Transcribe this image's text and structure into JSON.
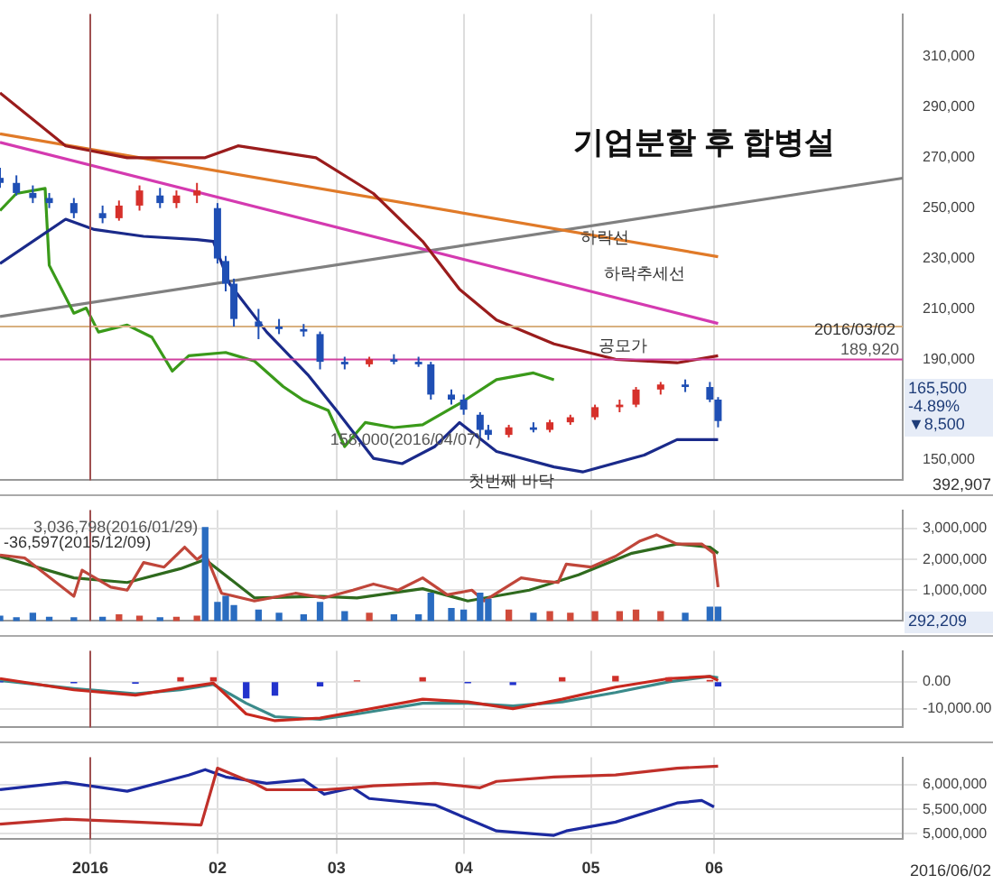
{
  "chart_data": [
    {
      "type": "candlestick",
      "title": "기업분할 후 합병설",
      "xlim": [
        "2015-12-10",
        "2016-07-17"
      ],
      "xticks": [
        {
          "value": "2016-01-01",
          "label": null
        },
        {
          "value": "2016-02-01",
          "label": null
        },
        {
          "value": "2016-03-01",
          "label": null
        },
        {
          "value": "2016-04-01",
          "label": null
        },
        {
          "value": "2016-05-02",
          "label": null
        },
        {
          "value": "2016-06-01",
          "label": null
        }
      ],
      "ylim": [
        142000,
        327000
      ],
      "yticks": [
        {
          "value": 150000,
          "label": "150,000"
        },
        {
          "value": 190000,
          "label": "190,000"
        },
        {
          "value": 210000,
          "label": "210,000"
        },
        {
          "value": 230000,
          "label": "230,000"
        },
        {
          "value": 250000,
          "label": "250,000"
        },
        {
          "value": 270000,
          "label": "270,000"
        },
        {
          "value": 290000,
          "label": "290,000"
        },
        {
          "value": 310000,
          "label": "310,000"
        }
      ],
      "grid": "x",
      "tick_labels": "y",
      "series": [
        {
          "type": "line",
          "color": "#1a2a8a",
          "x": [
            "2015-12-10",
            "2015-12-26",
            "2016-01-02",
            "2016-01-14",
            "2016-01-27",
            "2016-01-31",
            "2016-02-04",
            "2016-02-13",
            "2016-02-23",
            "2016-03-01",
            "2016-03-10",
            "2016-03-17",
            "2016-03-25",
            "2016-03-31",
            "2016-04-09",
            "2016-04-23",
            "2016-04-30",
            "2016-05-15",
            "2016-05-23",
            "2016-06-02"
          ],
          "values": [
            228000,
            245600,
            241500,
            238800,
            237500,
            236800,
            219800,
            200800,
            183900,
            169700,
            150700,
            148600,
            155400,
            164900,
            153400,
            147300,
            145300,
            152000,
            158100,
            158100
          ]
        },
        {
          "type": "line",
          "color": "#9a1c1c",
          "x": [
            "2015-12-10",
            "2015-12-26",
            "2016-01-10",
            "2016-01-29",
            "2016-02-06",
            "2016-02-25",
            "2016-03-10",
            "2016-03-22",
            "2016-03-31",
            "2016-04-09",
            "2016-04-23",
            "2016-05-08",
            "2016-05-23",
            "2016-06-02"
          ],
          "values": [
            295700,
            274700,
            270000,
            270000,
            274700,
            270000,
            255800,
            236800,
            217800,
            205600,
            196100,
            190000,
            188600,
            191400
          ]
        },
        {
          "type": "line",
          "color": "#3a9a1a",
          "x": [
            "2015-12-10",
            "2015-12-14",
            "2015-12-21",
            "2015-12-22",
            "2015-12-28",
            "2015-12-31",
            "2016-01-03",
            "2016-01-10",
            "2016-01-16",
            "2016-01-21",
            "2016-01-25",
            "2016-02-03",
            "2016-02-10",
            "2016-02-17",
            "2016-02-22",
            "2016-02-28",
            "2016-03-03",
            "2016-03-08",
            "2016-03-15",
            "2016-03-22",
            "2016-03-31",
            "2016-04-09",
            "2016-04-18",
            "2016-04-23"
          ],
          "values": [
            249000,
            255800,
            257800,
            227300,
            208300,
            210300,
            200800,
            203600,
            198800,
            185300,
            191400,
            192700,
            189300,
            179200,
            173700,
            169700,
            155400,
            164900,
            162900,
            164000,
            172400,
            181900,
            184600,
            181900
          ]
        },
        {
          "type": "line",
          "color": "#e07a28",
          "x": [
            "2015-12-10",
            "2016-06-02"
          ],
          "values": [
            279500,
            230700
          ]
        },
        {
          "type": "line",
          "color": "#d43ab0",
          "x": [
            "2015-12-10",
            "2016-06-02"
          ],
          "values": [
            276100,
            204200
          ]
        },
        {
          "type": "line",
          "color": "#808080",
          "x": [
            "2015-12-10",
            "2016-07-17"
          ],
          "values": [
            207000,
            261900
          ]
        },
        {
          "x": [
            "2015-12-10",
            "2015-12-14",
            "2015-12-18",
            "2015-12-22",
            "2015-12-28",
            "2016-01-04",
            "2016-01-08",
            "2016-01-13",
            "2016-01-18",
            "2016-01-22",
            "2016-01-27",
            "2016-02-01",
            "2016-02-03",
            "2016-02-05",
            "2016-02-11",
            "2016-02-16",
            "2016-02-22",
            "2016-02-26",
            "2016-03-03",
            "2016-03-09",
            "2016-03-15",
            "2016-03-21",
            "2016-03-24",
            "2016-03-29",
            "2016-04-01",
            "2016-04-05",
            "2016-04-07",
            "2016-04-12",
            "2016-04-18",
            "2016-04-22",
            "2016-04-27",
            "2016-05-03",
            "2016-05-09",
            "2016-05-13",
            "2016-05-19",
            "2016-05-25",
            "2016-05-31",
            "2016-06-02"
          ],
          "ohlc": [
            [
              262000,
              266000,
              258000,
              260000
            ],
            [
              260000,
              263000,
              255000,
              256000
            ],
            [
              256000,
              259000,
              252000,
              254000
            ],
            [
              254000,
              256000,
              250000,
              252000
            ],
            [
              252000,
              254000,
              246000,
              248000
            ],
            [
              248000,
              251000,
              244000,
              246000
            ],
            [
              246000,
              253000,
              245000,
              251000
            ],
            [
              251000,
              259000,
              249000,
              257000
            ],
            [
              255000,
              258000,
              250000,
              252000
            ],
            [
              252000,
              257000,
              250000,
              255000
            ],
            [
              255000,
              260000,
              252000,
              257000
            ],
            [
              250000,
              252000,
              228000,
              230000
            ],
            [
              229000,
              231000,
              217000,
              220000
            ],
            [
              220000,
              222000,
              203000,
              206000
            ],
            [
              205000,
              210000,
              198000,
              203000
            ],
            [
              203000,
              206000,
              200000,
              202000
            ],
            [
              202000,
              204000,
              199000,
              201000
            ],
            [
              200000,
              201000,
              186000,
              189000
            ],
            [
              189000,
              191000,
              186000,
              188000
            ],
            [
              188000,
              191000,
              187000,
              190000
            ],
            [
              190000,
              192000,
              188000,
              189000
            ],
            [
              189000,
              191000,
              187000,
              188000
            ],
            [
              188000,
              189000,
              174000,
              176000
            ],
            [
              176000,
              178000,
              172000,
              174000
            ],
            [
              174000,
              176000,
              168000,
              170000
            ],
            [
              168000,
              169000,
              159000,
              162000
            ],
            [
              162000,
              164000,
              158000,
              160000
            ],
            [
              160000,
              164000,
              159000,
              163000
            ],
            [
              163000,
              165000,
              161000,
              162000
            ],
            [
              162000,
              166000,
              161000,
              165000
            ],
            [
              165000,
              168000,
              164000,
              167000
            ],
            [
              167000,
              172000,
              166000,
              171000
            ],
            [
              171000,
              174000,
              169000,
              172000
            ],
            [
              172000,
              179000,
              171000,
              178000
            ],
            [
              178000,
              181000,
              176000,
              180000
            ],
            [
              180000,
              182000,
              177000,
              179000
            ],
            [
              179000,
              181000,
              173000,
              174000
            ],
            [
              174000,
              175000,
              163000,
              165500
            ]
          ],
          "colors": [
            "#1f4fb4",
            "#1f4fb4",
            "#1f4fb4",
            "#1f4fb4",
            "#1f4fb4",
            "#1f4fb4",
            "#d6302a",
            "#d6302a",
            "#1f4fb4",
            "#d6302a",
            "#d6302a",
            "#1f4fb4",
            "#1f4fb4",
            "#1f4fb4",
            "#1f4fb4",
            "#1f4fb4",
            "#1f4fb4",
            "#1f4fb4",
            "#1f4fb4",
            "#d6302a",
            "#1f4fb4",
            "#1f4fb4",
            "#1f4fb4",
            "#1f4fb4",
            "#1f4fb4",
            "#1f4fb4",
            "#1f4fb4",
            "#d6302a",
            "#1f4fb4",
            "#d6302a",
            "#d6302a",
            "#d6302a",
            "#d6302a",
            "#d6302a",
            "#d6302a",
            "#1f4fb4",
            "#1f4fb4",
            "#1f4fb4"
          ]
        }
      ],
      "ref_lines": [
        {
          "axis": "y",
          "value": 189920,
          "label": "189,920",
          "color": "#d040a0"
        },
        {
          "axis": "y",
          "value": 203000,
          "color": "#d8b080"
        },
        {
          "axis": "x",
          "value": "2016-01-01",
          "color": "#a05050"
        }
      ],
      "annotations": [
        "하락선",
        "하락추세선",
        "공모가",
        "첫번째 바닥",
        "2016/03/02",
        "165,500 -4.89% ▼8,500",
        "392,907",
        {
          "text": "158,000(2016/04/07)",
          "x": "2016-04-07",
          "y": 158000
        }
      ]
    },
    {
      "type": "bar",
      "xlim": [
        "2015-12-10",
        "2016-07-17"
      ],
      "xticks": [
        {
          "value": "2016-01-01",
          "label": null
        },
        {
          "value": "2016-02-01",
          "label": null
        },
        {
          "value": "2016-03-01",
          "label": null
        },
        {
          "value": "2016-04-01",
          "label": null
        },
        {
          "value": "2016-05-02",
          "label": null
        },
        {
          "value": "2016-06-01",
          "label": null
        }
      ],
      "ylim": [
        0,
        3600000
      ],
      "yticks": [
        {
          "value": 1000000,
          "label": "1,000,000"
        },
        {
          "value": 2000000,
          "label": "2,000,000"
        },
        {
          "value": 3000000,
          "label": "3,000,000"
        }
      ],
      "grid": true,
      "tick_labels": "y",
      "series": [
        {
          "x": [
            "2015-12-10",
            "2015-12-14",
            "2015-12-18",
            "2015-12-22",
            "2015-12-28",
            "2016-01-04",
            "2016-01-08",
            "2016-01-13",
            "2016-01-18",
            "2016-01-22",
            "2016-01-27",
            "2016-01-29",
            "2016-02-01",
            "2016-02-03",
            "2016-02-05",
            "2016-02-11",
            "2016-02-16",
            "2016-02-22",
            "2016-02-26",
            "2016-03-03",
            "2016-03-09",
            "2016-03-15",
            "2016-03-21",
            "2016-03-24",
            "2016-03-29",
            "2016-04-01",
            "2016-04-05",
            "2016-04-07",
            "2016-04-12",
            "2016-04-18",
            "2016-04-22",
            "2016-04-27",
            "2016-05-03",
            "2016-05-09",
            "2016-05-13",
            "2016-05-19",
            "2016-05-25",
            "2016-05-31",
            "2016-06-02"
          ],
          "values": [
            150000,
            100000,
            250000,
            120000,
            100000,
            120000,
            200000,
            150000,
            100000,
            120000,
            150000,
            3036798,
            600000,
            800000,
            500000,
            350000,
            250000,
            200000,
            600000,
            300000,
            250000,
            200000,
            200000,
            900000,
            400000,
            350000,
            900000,
            700000,
            350000,
            250000,
            300000,
            250000,
            300000,
            300000,
            350000,
            300000,
            250000,
            450000,
            450000
          ],
          "colors": [
            "#2a6cc0",
            "#2a6cc0",
            "#2a6cc0",
            "#2a6cc0",
            "#2a6cc0",
            "#2a6cc0",
            "#d04a3a",
            "#d04a3a",
            "#2a6cc0",
            "#d04a3a",
            "#d04a3a",
            "#2a6cc0",
            "#2a6cc0",
            "#2a6cc0",
            "#2a6cc0",
            "#2a6cc0",
            "#2a6cc0",
            "#2a6cc0",
            "#2a6cc0",
            "#2a6cc0",
            "#d04a3a",
            "#2a6cc0",
            "#2a6cc0",
            "#2a6cc0",
            "#2a6cc0",
            "#2a6cc0",
            "#2a6cc0",
            "#2a6cc0",
            "#d04a3a",
            "#2a6cc0",
            "#d04a3a",
            "#d04a3a",
            "#d04a3a",
            "#d04a3a",
            "#d04a3a",
            "#d04a3a",
            "#2a6cc0",
            "#2a6cc0",
            "#2a6cc0"
          ]
        },
        {
          "type": "line",
          "color": "#c0463a",
          "x": [
            "2015-12-10",
            "2015-12-16",
            "2015-12-28",
            "2015-12-30",
            "2016-01-06",
            "2016-01-10",
            "2016-01-14",
            "2016-01-19",
            "2016-01-24",
            "2016-01-27",
            "2016-01-29",
            "2016-02-02",
            "2016-02-10",
            "2016-02-20",
            "2016-02-27",
            "2016-03-05",
            "2016-03-10",
            "2016-03-16",
            "2016-03-22",
            "2016-03-28",
            "2016-04-03",
            "2016-04-06",
            "2016-04-15",
            "2016-04-20",
            "2016-04-24",
            "2016-04-26",
            "2016-05-02",
            "2016-05-08",
            "2016-05-14",
            "2016-05-18",
            "2016-05-23",
            "2016-05-29",
            "2016-06-01",
            "2016-06-02"
          ],
          "values": [
            2140000,
            2050000,
            800000,
            1650000,
            1100000,
            1000000,
            1900000,
            1750000,
            2400000,
            2000000,
            2200000,
            900000,
            650000,
            900000,
            750000,
            1000000,
            1200000,
            1000000,
            1400000,
            850000,
            1000000,
            650000,
            1400000,
            1300000,
            1250000,
            1850000,
            1750000,
            2100000,
            2600000,
            2800000,
            2500000,
            2500000,
            2200000,
            1100000
          ]
        },
        {
          "type": "line",
          "color": "#2f6a1e",
          "x": [
            "2015-12-10",
            "2015-12-28",
            "2016-01-10",
            "2016-01-23",
            "2016-01-29",
            "2016-02-10",
            "2016-02-26",
            "2016-03-06",
            "2016-03-22",
            "2016-04-02",
            "2016-04-17",
            "2016-04-29",
            "2016-05-12",
            "2016-05-23",
            "2016-05-31",
            "2016-06-02"
          ],
          "values": [
            2100000,
            1400000,
            1250000,
            1700000,
            2000000,
            750000,
            800000,
            750000,
            1050000,
            650000,
            1000000,
            1500000,
            2200000,
            2500000,
            2400000,
            2200000
          ]
        }
      ],
      "ref_lines": [
        {
          "axis": "x",
          "value": "2016-01-01",
          "color": "#a05050"
        }
      ],
      "annotations": [
        "-36,597(2015/12/09)",
        "292,209",
        {
          "text": "3,036,798(2016/01/29)",
          "x": "2016-01-29",
          "y": 3036798
        }
      ]
    },
    {
      "type": "line",
      "xlim": [
        "2015-12-10",
        "2016-07-17"
      ],
      "xticks": [
        {
          "value": "2016-01-01",
          "label": null
        },
        {
          "value": "2016-02-01",
          "label": null
        },
        {
          "value": "2016-03-01",
          "label": null
        },
        {
          "value": "2016-04-01",
          "label": null
        },
        {
          "value": "2016-05-02",
          "label": null
        },
        {
          "value": "2016-06-01",
          "label": null
        }
      ],
      "ylim": [
        -17000,
        11500
      ],
      "yticks": [
        {
          "value": -10000,
          "label": "-10,000.00"
        },
        {
          "value": 0,
          "label": "0.00"
        }
      ],
      "grid": true,
      "tick_labels": "y",
      "series": [
        {
          "type": "bar",
          "x": [
            "2015-12-10",
            "2015-12-28",
            "2016-01-12",
            "2016-01-23",
            "2016-01-31",
            "2016-02-08",
            "2016-02-15",
            "2016-02-26",
            "2016-03-06",
            "2016-03-22",
            "2016-04-02",
            "2016-04-13",
            "2016-04-25",
            "2016-05-08",
            "2016-05-21",
            "2016-05-31",
            "2016-06-02"
          ],
          "values": [
            0,
            -300,
            -500,
            1500,
            1500,
            -6000,
            -5000,
            -1500,
            300,
            1500,
            -300,
            -1000,
            1500,
            2000,
            1500,
            500,
            -1500
          ],
          "colors": [
            "#2233cc",
            "#2233cc",
            "#2233cc",
            "#d0302a",
            "#d0302a",
            "#2233cc",
            "#2233cc",
            "#2233cc",
            "#d0302a",
            "#d0302a",
            "#2233cc",
            "#2233cc",
            "#d0302a",
            "#d0302a",
            "#d0302a",
            "#d0302a",
            "#2233cc"
          ]
        },
        {
          "color": "#c8281e",
          "x": [
            "2015-12-10",
            "2015-12-28",
            "2016-01-12",
            "2016-01-23",
            "2016-01-31",
            "2016-02-08",
            "2016-02-15",
            "2016-02-26",
            "2016-03-06",
            "2016-03-22",
            "2016-04-02",
            "2016-04-13",
            "2016-04-25",
            "2016-05-08",
            "2016-05-21",
            "2016-05-31",
            "2016-06-02"
          ],
          "values": [
            1200,
            -3000,
            -5000,
            -2300,
            -500,
            -12000,
            -14500,
            -13500,
            -11000,
            -6500,
            -7500,
            -10000,
            -6500,
            -2000,
            1200,
            2000,
            500
          ]
        },
        {
          "color": "#3a8a8a",
          "x": [
            "2015-12-10",
            "2015-12-28",
            "2016-01-12",
            "2016-01-23",
            "2016-01-31",
            "2016-02-08",
            "2016-02-15",
            "2016-02-26",
            "2016-03-06",
            "2016-03-22",
            "2016-04-02",
            "2016-04-13",
            "2016-04-25",
            "2016-05-08",
            "2016-05-21",
            "2016-05-31",
            "2016-06-02"
          ],
          "values": [
            500,
            -2500,
            -4500,
            -3000,
            -1000,
            -8000,
            -13000,
            -14000,
            -12000,
            -8000,
            -8000,
            -9000,
            -7500,
            -4000,
            0,
            2000,
            1500
          ]
        }
      ],
      "ref_lines": [
        {
          "axis": "x",
          "value": "2016-01-01",
          "color": "#a05050"
        }
      ]
    },
    {
      "type": "line",
      "xlim": [
        "2015-12-10",
        "2016-07-17"
      ],
      "xticks": [
        {
          "value": "2016-01-01",
          "label": "2016"
        },
        {
          "value": "2016-02-01",
          "label": "02"
        },
        {
          "value": "2016-03-01",
          "label": "03"
        },
        {
          "value": "2016-04-01",
          "label": "04"
        },
        {
          "value": "2016-05-02",
          "label": "05"
        },
        {
          "value": "2016-06-01",
          "label": "06"
        }
      ],
      "ylim": [
        4890000,
        6560000
      ],
      "yticks": [
        {
          "value": 5000000,
          "label": "5,000,000"
        },
        {
          "value": 5500000,
          "label": "5,500,000"
        },
        {
          "value": 6000000,
          "label": "6,000,000"
        }
      ],
      "grid": true,
      "series": [
        {
          "color": "#c0302a",
          "x": [
            "2015-12-10",
            "2015-12-26",
            "2016-01-10",
            "2016-01-28",
            "2016-02-01",
            "2016-02-10",
            "2016-02-13",
            "2016-02-27",
            "2016-03-05",
            "2016-03-10",
            "2016-03-25",
            "2016-04-05",
            "2016-04-09",
            "2016-04-23",
            "2016-05-08",
            "2016-05-23",
            "2016-06-02"
          ],
          "values": [
            5200000,
            5300000,
            5250000,
            5180000,
            6340000,
            6030000,
            5900000,
            5900000,
            5940000,
            5980000,
            6030000,
            5940000,
            6070000,
            6160000,
            6200000,
            6340000,
            6380000
          ]
        },
        {
          "color": "#1c2aa0",
          "x": [
            "2015-12-10",
            "2015-12-26",
            "2016-01-10",
            "2016-01-25",
            "2016-01-29",
            "2016-02-03",
            "2016-02-13",
            "2016-02-22",
            "2016-02-27",
            "2016-03-05",
            "2016-03-09",
            "2016-03-25",
            "2016-04-09",
            "2016-04-23",
            "2016-04-26",
            "2016-05-08",
            "2016-05-23",
            "2016-05-29",
            "2016-06-01"
          ],
          "values": [
            5900000,
            6050000,
            5870000,
            6200000,
            6310000,
            6160000,
            6030000,
            6100000,
            5810000,
            5940000,
            5720000,
            5590000,
            5060000,
            4970000,
            5060000,
            5240000,
            5630000,
            5680000,
            5550000
          ]
        }
      ],
      "ref_lines": [
        {
          "axis": "x",
          "value": "2016-01-01",
          "color": "#a05050"
        }
      ],
      "annotations": [
        "2016/06/02"
      ]
    }
  ]
}
